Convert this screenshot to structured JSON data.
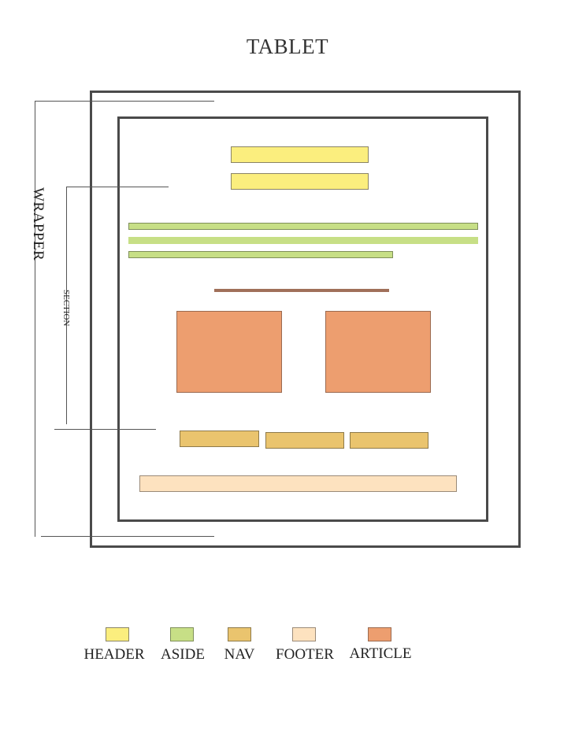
{
  "title": "TABLET",
  "labels": {
    "wrapper": "WRAPPER",
    "section": "SECTION"
  },
  "colors": {
    "header": "#fbee7e",
    "aside": "#c7df86",
    "nav": "#eac46e",
    "footer": "#fde2bf",
    "article": "#ed9e6f",
    "frame": "#4a4a4a"
  },
  "legend": [
    {
      "key": "header",
      "label": "HEADER"
    },
    {
      "key": "aside",
      "label": "ASIDE"
    },
    {
      "key": "nav",
      "label": "NAV"
    },
    {
      "key": "footer",
      "label": "FOOTER"
    },
    {
      "key": "article",
      "label": "ARTICLE"
    }
  ]
}
